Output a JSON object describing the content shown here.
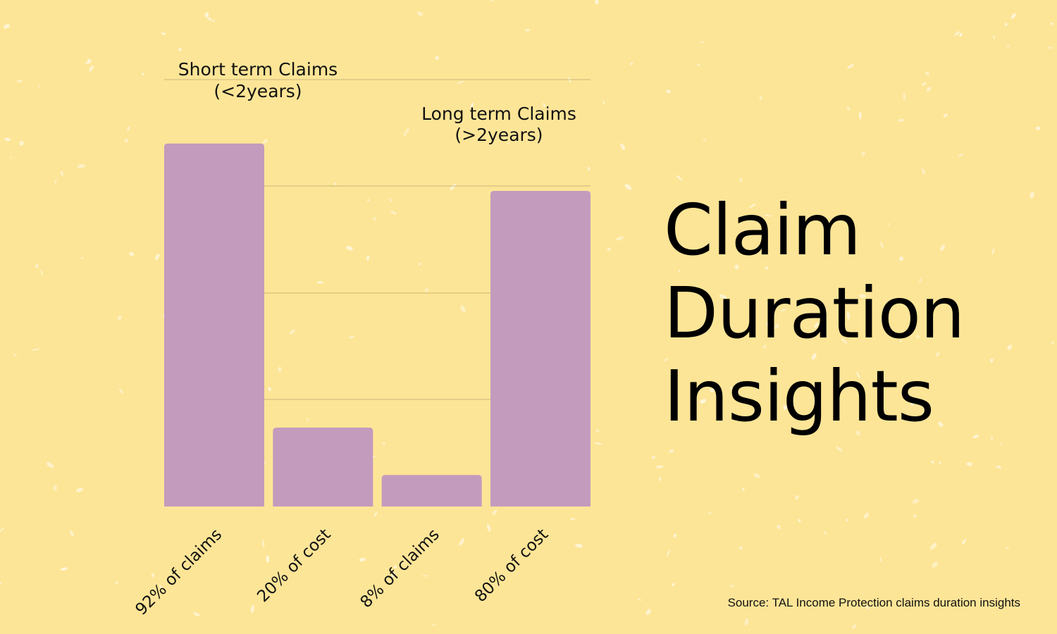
{
  "colors": {
    "background": "#fde597",
    "bar": "#c39bbd",
    "grid": "#c9b87a",
    "text": "#111111",
    "speckle": "#fff6dc"
  },
  "heading": {
    "line1": "Claim",
    "line2": "Duration",
    "line3": "Insights"
  },
  "source": "Source: TAL Income Protection claims duration insights",
  "chart_data": {
    "type": "bar",
    "title": "Claim Duration Insights",
    "categories": [
      "92% of claims",
      "20% of cost",
      "8% of claims",
      "80% of cost"
    ],
    "values": [
      92,
      20,
      8,
      80
    ],
    "ylim": [
      0,
      100
    ],
    "xlabel": "",
    "ylabel": "",
    "grid": true,
    "annotations": [
      {
        "line1": "Short term Claims",
        "line2": "(<2years)",
        "bar_index": 0
      },
      {
        "line1": "Long term Claims",
        "line2": "(>2years)",
        "bar_index": 3
      }
    ]
  }
}
